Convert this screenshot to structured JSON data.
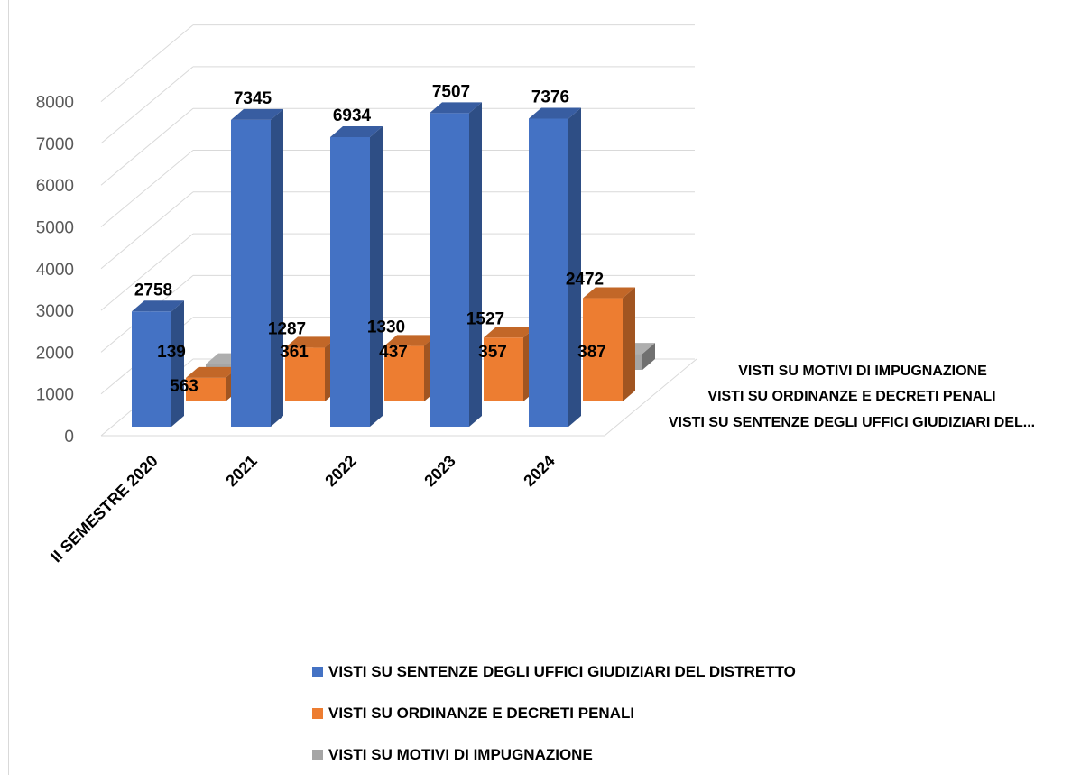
{
  "chart_data": {
    "type": "bar",
    "subtype": "3d-column",
    "categories": [
      "II SEMESTRE 2020",
      "2021",
      "2022",
      "2023",
      "2024"
    ],
    "series": [
      {
        "name": "VISTI SU SENTENZE DEGLI UFFICI GIUDIZIARI  DEL DISTRETTO",
        "color": "#4472c4",
        "values": [
          2758,
          7345,
          6934,
          7507,
          7376
        ]
      },
      {
        "name": "VISTI SU ORDINANZE E DECRETI PENALI",
        "color": "#ed7d31",
        "values": [
          563,
          1287,
          1330,
          1527,
          2472
        ]
      },
      {
        "name": "VISTI SU MOTIVI DI IMPUGNAZIONE",
        "color": "#a5a5a5",
        "values": [
          139,
          361,
          437,
          357,
          387
        ]
      }
    ],
    "y_ticks": [
      "0",
      "1000",
      "2000",
      "3000",
      "4000",
      "5000",
      "6000",
      "7000",
      "8000"
    ],
    "ylim": [
      0,
      8000
    ],
    "depth_axis_labels": [
      "VISTI SU MOTIVI DI IMPUGNAZIONE",
      "VISTI SU ORDINANZE E DECRETI PENALI",
      "VISTI SU SENTENZE DEGLI UFFICI GIUDIZIARI  DEL..."
    ],
    "grid": true,
    "legend_position": "bottom"
  }
}
